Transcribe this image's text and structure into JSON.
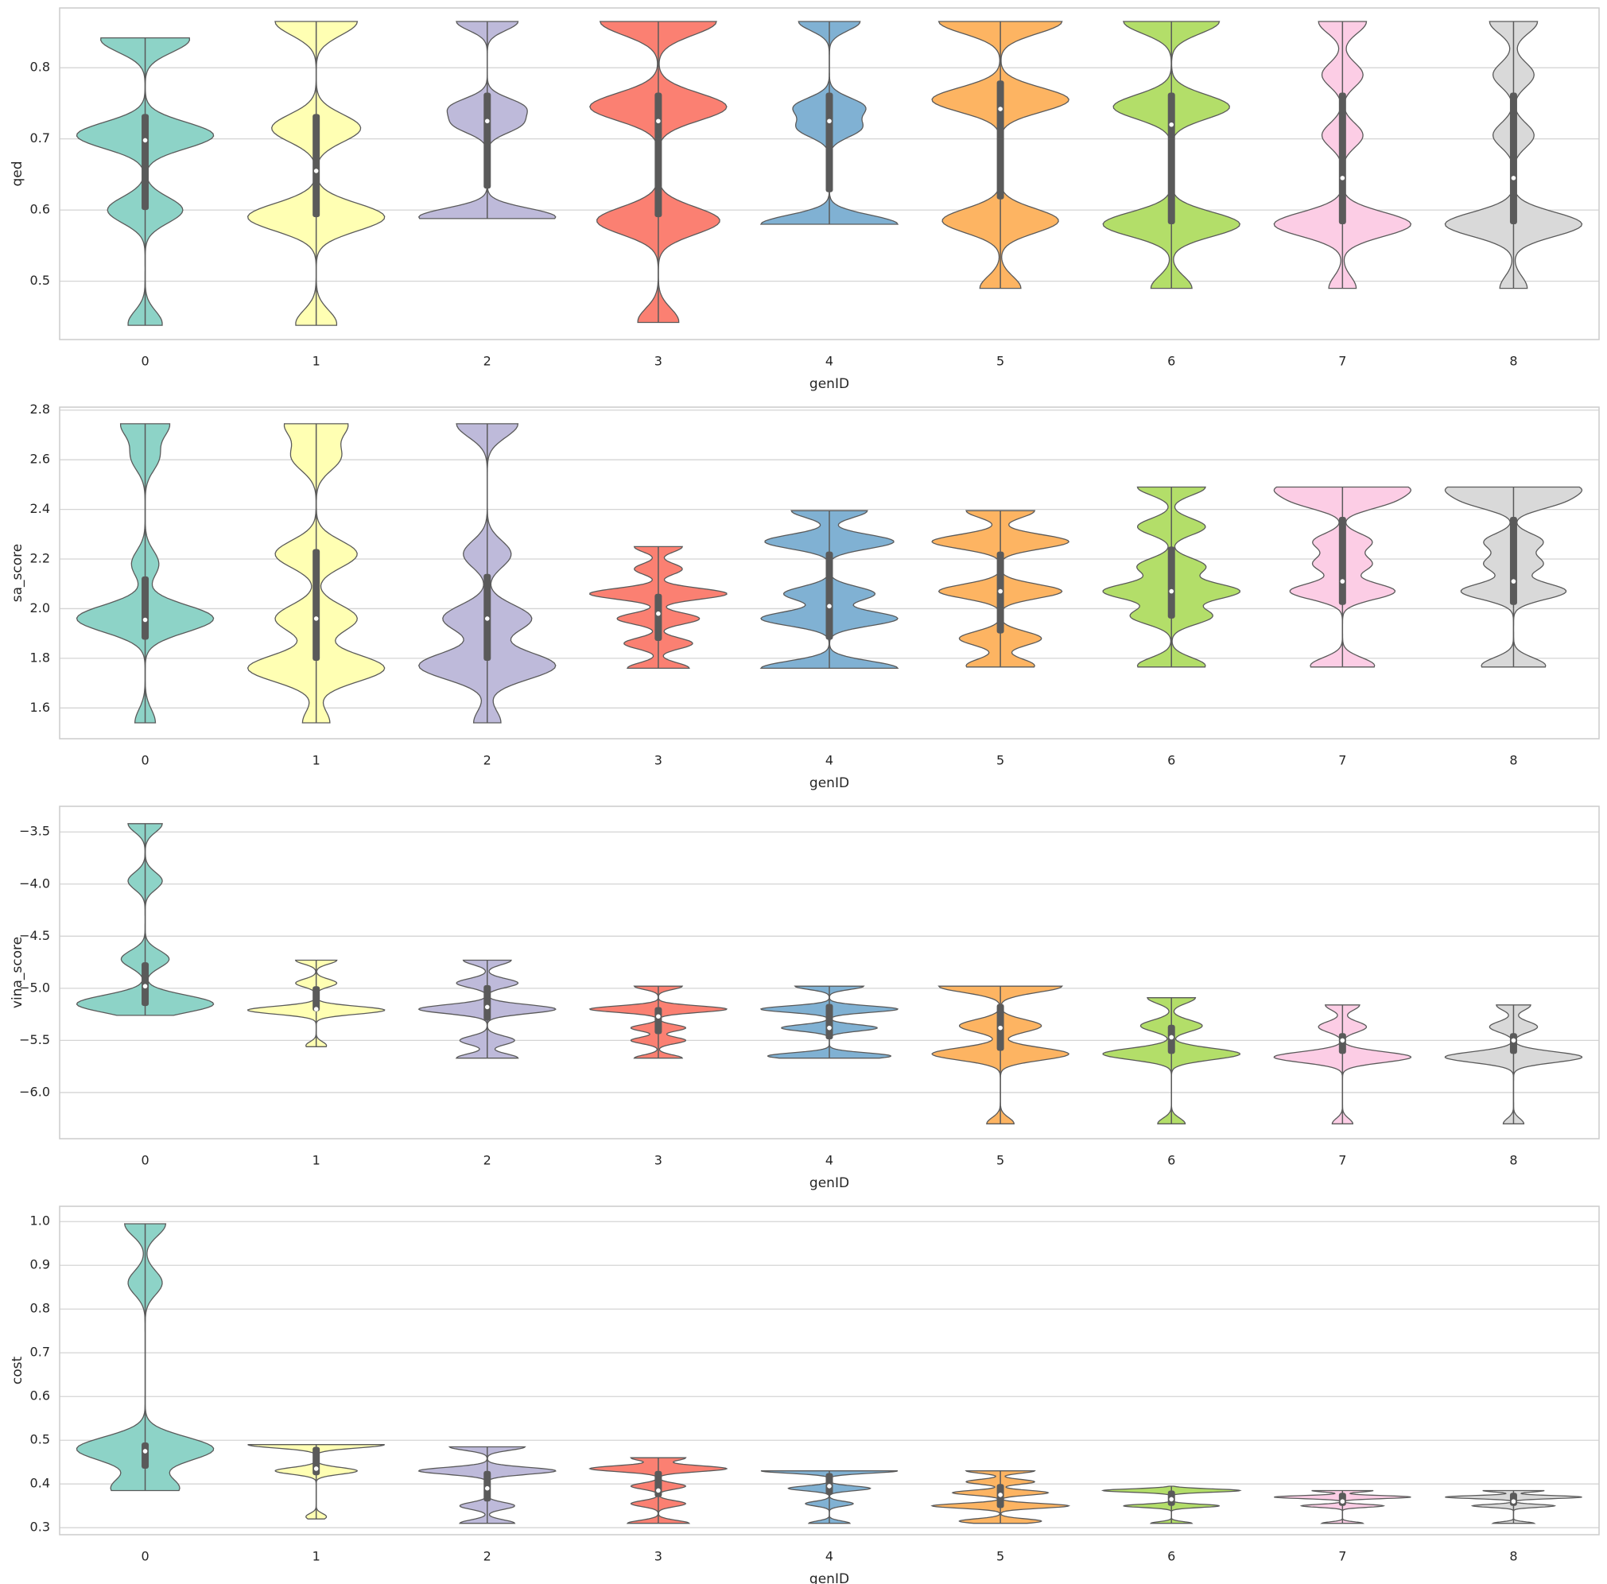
{
  "chart_data": [
    {
      "type": "violin",
      "ylabel": "qed",
      "xlabel": "genID",
      "categories": [
        "0",
        "1",
        "2",
        "3",
        "4",
        "5",
        "6",
        "7",
        "8"
      ],
      "colors": [
        "#8dd3c7",
        "#ffffb3",
        "#bebada",
        "#fb8072",
        "#80b1d3",
        "#fdb462",
        "#b3de69",
        "#fccde5",
        "#d9d9d9"
      ],
      "ylim": [
        0.418,
        0.884
      ],
      "yticks": [
        0.5,
        0.6,
        0.7,
        0.8
      ],
      "grid": true,
      "violins": [
        {
          "min": 0.438,
          "max": 0.842,
          "q1": 0.6,
          "median": 0.698,
          "q3": 0.735,
          "modes": [
            0.44,
            0.6,
            0.705,
            0.84
          ],
          "weights": [
            0.25,
            0.55,
            1,
            0.65
          ]
        },
        {
          "min": 0.438,
          "max": 0.865,
          "q1": 0.59,
          "median": 0.655,
          "q3": 0.735,
          "modes": [
            0.44,
            0.59,
            0.715,
            0.865
          ],
          "weights": [
            0.3,
            1,
            0.65,
            0.6
          ]
        },
        {
          "min": 0.588,
          "max": 0.865,
          "q1": 0.63,
          "median": 0.725,
          "q3": 0.765,
          "modes": [
            0.59,
            0.72,
            0.745,
            0.865
          ],
          "weights": [
            1,
            0.45,
            0.5,
            0.45
          ]
        },
        {
          "min": 0.442,
          "max": 0.865,
          "q1": 0.59,
          "median": 0.725,
          "q3": 0.765,
          "modes": [
            0.443,
            0.585,
            0.745,
            0.865
          ],
          "weights": [
            0.3,
            0.9,
            1,
            0.85
          ]
        },
        {
          "min": 0.58,
          "max": 0.865,
          "q1": 0.625,
          "median": 0.725,
          "q3": 0.765,
          "modes": [
            0.58,
            0.715,
            0.745,
            0.865
          ],
          "weights": [
            1,
            0.45,
            0.5,
            0.45
          ]
        },
        {
          "min": 0.49,
          "max": 0.865,
          "q1": 0.615,
          "median": 0.742,
          "q3": 0.782,
          "modes": [
            0.49,
            0.585,
            0.755,
            0.865
          ],
          "weights": [
            0.3,
            0.85,
            1,
            0.9
          ]
        },
        {
          "min": 0.49,
          "max": 0.865,
          "q1": 0.58,
          "median": 0.72,
          "q3": 0.765,
          "modes": [
            0.49,
            0.58,
            0.745,
            0.865
          ],
          "weights": [
            0.3,
            1,
            0.85,
            0.7
          ]
        },
        {
          "min": 0.49,
          "max": 0.865,
          "q1": 0.58,
          "median": 0.645,
          "q3": 0.765,
          "modes": [
            0.49,
            0.58,
            0.705,
            0.79,
            0.865
          ],
          "weights": [
            0.2,
            1,
            0.3,
            0.3,
            0.35
          ]
        },
        {
          "min": 0.49,
          "max": 0.865,
          "q1": 0.58,
          "median": 0.645,
          "q3": 0.765,
          "modes": [
            0.49,
            0.58,
            0.705,
            0.79,
            0.865
          ],
          "weights": [
            0.2,
            1,
            0.3,
            0.3,
            0.35
          ]
        }
      ]
    },
    {
      "type": "violin",
      "ylabel": "sa_score",
      "xlabel": "genID",
      "categories": [
        "0",
        "1",
        "2",
        "3",
        "4",
        "5",
        "6",
        "7",
        "8"
      ],
      "colors": [
        "#8dd3c7",
        "#ffffb3",
        "#bebada",
        "#fb8072",
        "#80b1d3",
        "#fdb462",
        "#b3de69",
        "#fccde5",
        "#d9d9d9"
      ],
      "ylim": [
        1.476,
        2.812
      ],
      "yticks": [
        1.6,
        1.8,
        {
          "value": 2,
          "label": "2.0"
        },
        2.2,
        2.4,
        2.6,
        2.8
      ],
      "grid": true,
      "violins": [
        {
          "min": 1.54,
          "max": 2.745,
          "q1": 1.875,
          "median": 1.955,
          "q3": 2.13,
          "modes": [
            1.54,
            1.96,
            2.18,
            2.61,
            2.745
          ],
          "weights": [
            0.15,
            1,
            0.2,
            0.2,
            0.35
          ]
        },
        {
          "min": 1.54,
          "max": 2.745,
          "q1": 1.79,
          "median": 1.96,
          "q3": 2.24,
          "modes": [
            1.54,
            1.76,
            1.96,
            2.22,
            2.61,
            2.745
          ],
          "weights": [
            0.2,
            1,
            0.6,
            0.6,
            0.35,
            0.45
          ]
        },
        {
          "min": 1.54,
          "max": 2.745,
          "q1": 1.79,
          "median": 1.96,
          "q3": 2.14,
          "modes": [
            1.54,
            1.77,
            1.96,
            2.22,
            2.745
          ],
          "weights": [
            0.2,
            1,
            0.65,
            0.35,
            0.45
          ]
        },
        {
          "min": 1.76,
          "max": 2.25,
          "q1": 1.87,
          "median": 1.98,
          "q3": 2.06,
          "modes": [
            1.76,
            1.86,
            1.96,
            2.06,
            2.16,
            2.25
          ],
          "weights": [
            0.45,
            0.5,
            0.6,
            1,
            0.35,
            0.35
          ]
        },
        {
          "min": 1.76,
          "max": 2.395,
          "q1": 1.875,
          "median": 2.01,
          "q3": 2.23,
          "modes": [
            1.76,
            1.96,
            2.06,
            2.27,
            2.395
          ],
          "weights": [
            0.9,
            0.9,
            0.6,
            0.85,
            0.5
          ]
        },
        {
          "min": 1.765,
          "max": 2.395,
          "q1": 1.9,
          "median": 2.07,
          "q3": 2.23,
          "modes": [
            1.77,
            1.88,
            2.07,
            2.27,
            2.395
          ],
          "weights": [
            0.5,
            0.6,
            0.9,
            1,
            0.5
          ]
        },
        {
          "min": 1.765,
          "max": 2.49,
          "q1": 1.96,
          "median": 2.07,
          "q3": 2.25,
          "modes": [
            1.77,
            1.97,
            2.07,
            2.17,
            2.33,
            2.49
          ],
          "weights": [
            0.5,
            0.6,
            1,
            0.5,
            0.5,
            0.5
          ]
        },
        {
          "min": 1.765,
          "max": 2.49,
          "q1": 2.015,
          "median": 2.11,
          "q3": 2.37,
          "modes": [
            1.77,
            2.07,
            2.18,
            2.27,
            2.43,
            2.49
          ],
          "weights": [
            0.55,
            0.9,
            0.5,
            0.5,
            0.7,
            1
          ]
        },
        {
          "min": 1.765,
          "max": 2.49,
          "q1": 2.015,
          "median": 2.11,
          "q3": 2.37,
          "modes": [
            1.77,
            2.07,
            2.18,
            2.27,
            2.43,
            2.49
          ],
          "weights": [
            0.55,
            0.9,
            0.5,
            0.5,
            0.7,
            1
          ]
        }
      ]
    },
    {
      "type": "violin",
      "ylabel": "vina_score",
      "xlabel": "genID",
      "categories": [
        "0",
        "1",
        "2",
        "3",
        "4",
        "5",
        "6",
        "7",
        "8"
      ],
      "colors": [
        "#8dd3c7",
        "#ffffb3",
        "#bebada",
        "#fb8072",
        "#80b1d3",
        "#fdb462",
        "#b3de69",
        "#fccde5",
        "#d9d9d9"
      ],
      "ylim": [
        -6.443,
        -3.254
      ],
      "yticks": [
        {
          "value": -6,
          "label": "−6.0"
        },
        {
          "value": -5.5,
          "label": "−5.5"
        },
        {
          "value": -5,
          "label": "−5.0"
        },
        {
          "value": -4.5,
          "label": "−4.5"
        },
        {
          "value": -4,
          "label": "−4.0"
        },
        {
          "value": -3.5,
          "label": "−3.5"
        }
      ],
      "grid": true,
      "violins": [
        {
          "min": -5.26,
          "max": -3.42,
          "q1": -5.17,
          "median": -4.98,
          "q3": -4.75,
          "modes": [
            -5.15,
            -4.72,
            -3.97,
            -3.42
          ],
          "weights": [
            1,
            0.35,
            0.25,
            0.25
          ]
        },
        {
          "min": -5.56,
          "max": -4.73,
          "q1": -5.22,
          "median": -5.2,
          "q3": -4.98,
          "modes": [
            -5.55,
            -5.21,
            -4.95,
            -4.73
          ],
          "weights": [
            0.15,
            1,
            0.3,
            0.3
          ]
        },
        {
          "min": -5.67,
          "max": -4.73,
          "q1": -5.31,
          "median": -5.18,
          "q3": -4.97,
          "modes": [
            -5.67,
            -5.5,
            -5.2,
            -4.95,
            -4.73
          ],
          "weights": [
            0.45,
            0.4,
            1,
            0.45,
            0.35
          ]
        },
        {
          "min": -5.67,
          "max": -4.98,
          "q1": -5.44,
          "median": -5.27,
          "q3": -5.18,
          "modes": [
            -5.67,
            -5.5,
            -5.38,
            -5.2,
            -4.98
          ],
          "weights": [
            0.35,
            0.4,
            0.4,
            1,
            0.35
          ]
        },
        {
          "min": -5.67,
          "max": -4.98,
          "q1": -5.49,
          "median": -5.38,
          "q3": -5.15,
          "modes": [
            -5.65,
            -5.38,
            -5.2,
            -4.98
          ],
          "weights": [
            0.9,
            0.7,
            1,
            0.5
          ]
        },
        {
          "min": -6.3,
          "max": -4.98,
          "q1": -5.6,
          "median": -5.38,
          "q3": -5.15,
          "modes": [
            -6.3,
            -5.63,
            -5.36,
            -4.98
          ],
          "weights": [
            0.2,
            1,
            0.6,
            0.9
          ]
        },
        {
          "min": -6.3,
          "max": -5.09,
          "q1": -5.63,
          "median": -5.47,
          "q3": -5.35,
          "modes": [
            -6.3,
            -5.63,
            -5.36,
            -5.09
          ],
          "weights": [
            0.2,
            1,
            0.45,
            0.35
          ]
        },
        {
          "min": -6.3,
          "max": -5.16,
          "q1": -5.63,
          "median": -5.5,
          "q3": -5.43,
          "modes": [
            -6.3,
            -5.66,
            -5.37,
            -5.16
          ],
          "weights": [
            0.15,
            1,
            0.35,
            0.25
          ]
        },
        {
          "min": -6.3,
          "max": -5.16,
          "q1": -5.63,
          "median": -5.5,
          "q3": -5.43,
          "modes": [
            -6.3,
            -5.66,
            -5.37,
            -5.16
          ],
          "weights": [
            0.15,
            1,
            0.35,
            0.25
          ]
        }
      ]
    },
    {
      "type": "violin",
      "ylabel": "cost",
      "xlabel": "genID",
      "categories": [
        "0",
        "1",
        "2",
        "3",
        "4",
        "5",
        "6",
        "7",
        "8"
      ],
      "colors": [
        "#8dd3c7",
        "#ffffb3",
        "#bebada",
        "#fb8072",
        "#80b1d3",
        "#fdb462",
        "#b3de69",
        "#fccde5",
        "#d9d9d9"
      ],
      "ylim": [
        0.284,
        1.035
      ],
      "yticks": [
        0.3,
        0.4,
        0.5,
        0.6,
        0.7,
        0.8,
        0.9,
        {
          "value": 1,
          "label": "1.0"
        }
      ],
      "grid": true,
      "violins": [
        {
          "min": 0.385,
          "max": 0.995,
          "q1": 0.435,
          "median": 0.475,
          "q3": 0.495,
          "modes": [
            0.39,
            0.48,
            0.86,
            0.995
          ],
          "weights": [
            0.5,
            1,
            0.25,
            0.3
          ]
        },
        {
          "min": 0.32,
          "max": 0.49,
          "q1": 0.42,
          "median": 0.435,
          "q3": 0.485,
          "modes": [
            0.325,
            0.43,
            0.49
          ],
          "weights": [
            0.15,
            0.6,
            1
          ]
        },
        {
          "min": 0.31,
          "max": 0.485,
          "q1": 0.36,
          "median": 0.39,
          "q3": 0.43,
          "modes": [
            0.31,
            0.35,
            0.43,
            0.485
          ],
          "weights": [
            0.4,
            0.4,
            1,
            0.55
          ]
        },
        {
          "min": 0.31,
          "max": 0.46,
          "q1": 0.37,
          "median": 0.385,
          "q3": 0.43,
          "modes": [
            0.31,
            0.355,
            0.395,
            0.435,
            0.46
          ],
          "weights": [
            0.45,
            0.4,
            0.4,
            1,
            0.4
          ]
        },
        {
          "min": 0.31,
          "max": 0.43,
          "q1": 0.375,
          "median": 0.395,
          "q3": 0.425,
          "modes": [
            0.31,
            0.355,
            0.39,
            0.43
          ],
          "weights": [
            0.3,
            0.35,
            0.6,
            1
          ]
        },
        {
          "min": 0.31,
          "max": 0.43,
          "q1": 0.345,
          "median": 0.375,
          "q3": 0.4,
          "modes": [
            0.315,
            0.35,
            0.38,
            0.405,
            0.43
          ],
          "weights": [
            0.6,
            1,
            0.7,
            0.5,
            0.5
          ]
        },
        {
          "min": 0.31,
          "max": 0.395,
          "q1": 0.35,
          "median": 0.365,
          "q3": 0.385,
          "modes": [
            0.31,
            0.35,
            0.385
          ],
          "weights": [
            0.3,
            0.7,
            1
          ]
        },
        {
          "min": 0.31,
          "max": 0.385,
          "q1": 0.35,
          "median": 0.36,
          "q3": 0.38,
          "modes": [
            0.31,
            0.35,
            0.37,
            0.385
          ],
          "weights": [
            0.3,
            0.6,
            1,
            0.45
          ]
        },
        {
          "min": 0.31,
          "max": 0.385,
          "q1": 0.35,
          "median": 0.36,
          "q3": 0.38,
          "modes": [
            0.31,
            0.35,
            0.37,
            0.385
          ],
          "weights": [
            0.3,
            0.6,
            1,
            0.45
          ]
        }
      ]
    }
  ]
}
